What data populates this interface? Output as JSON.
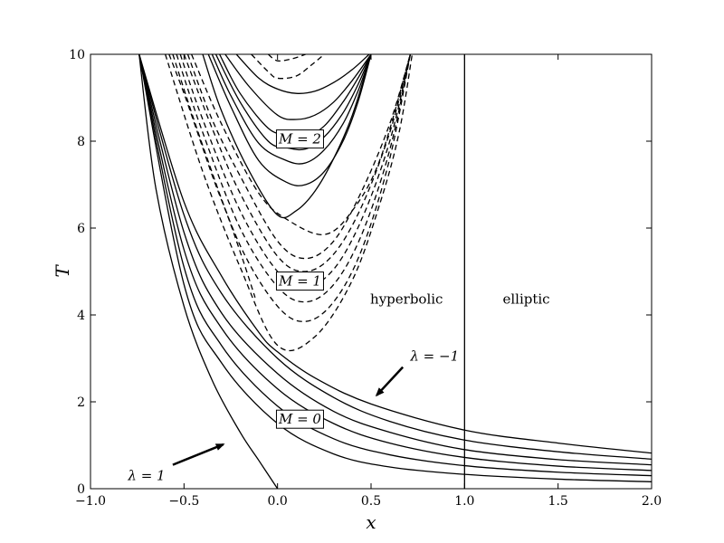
{
  "chart_data": {
    "type": "line",
    "title": "",
    "xlabel": "x",
    "ylabel": "T",
    "xlim": [
      -1.0,
      2.0
    ],
    "ylim": [
      0,
      10
    ],
    "x_ticks": [
      -1.0,
      -0.5,
      0.0,
      0.5,
      1.0,
      1.5,
      2.0
    ],
    "x_tick_labels": [
      "−1.0",
      "−0.5",
      "0.0",
      "0.5",
      "1.0",
      "1.5",
      "2.0"
    ],
    "y_ticks": [
      0,
      2,
      4,
      6,
      8,
      10
    ],
    "y_tick_labels": [
      "0",
      "2",
      "4",
      "6",
      "8",
      "10"
    ],
    "grid": false,
    "vertical_line_x": 1.0,
    "region_labels": [
      {
        "text": "hyperbolic",
        "x": 0.69,
        "y": 4.05
      },
      {
        "text": "elliptic",
        "x": 1.33,
        "y": 4.05
      }
    ],
    "box_labels": [
      {
        "text": "M = 0",
        "x": 0.12,
        "y": 1.6
      },
      {
        "text": "M = 1",
        "x": 0.12,
        "y": 4.78
      },
      {
        "text": "M = 2",
        "x": 0.12,
        "y": 8.05
      }
    ],
    "annotations": [
      {
        "text": "λ = 1",
        "text_x": -0.7,
        "text_y": 0.3,
        "arrow_from": [
          -0.56,
          0.55
        ],
        "arrow_to": [
          -0.29,
          1.02
        ]
      },
      {
        "text": "λ = −1",
        "text_x": 0.84,
        "text_y": 3.05,
        "arrow_from": [
          0.67,
          2.8
        ],
        "arrow_to": [
          0.53,
          2.15
        ]
      }
    ],
    "series": [
      {
        "group": "M=0",
        "style": "solid",
        "x": [
          -0.74,
          -0.65,
          -0.5,
          -0.35,
          -0.2,
          -0.1,
          0.0
        ],
        "y": [
          10,
          6.9,
          4.2,
          2.5,
          1.3,
          0.65,
          0.0
        ]
      },
      {
        "group": "M=0",
        "style": "solid",
        "x": [
          -0.74,
          -0.5,
          -0.3,
          0.0,
          0.3,
          0.6,
          1.0,
          1.5,
          2.0
        ],
        "y": [
          10,
          4.7,
          2.9,
          1.5,
          0.8,
          0.5,
          0.33,
          0.22,
          0.16
        ]
      },
      {
        "group": "M=0",
        "style": "solid",
        "x": [
          -0.74,
          -0.5,
          -0.3,
          0.0,
          0.3,
          0.6,
          1.0,
          1.5,
          2.0
        ],
        "y": [
          10,
          5.1,
          3.3,
          1.9,
          1.15,
          0.78,
          0.53,
          0.38,
          0.3
        ]
      },
      {
        "group": "M=0",
        "style": "solid",
        "x": [
          -0.74,
          -0.5,
          -0.3,
          0.0,
          0.3,
          0.6,
          1.0,
          1.5,
          2.0
        ],
        "y": [
          10,
          5.5,
          3.7,
          2.3,
          1.5,
          1.05,
          0.72,
          0.52,
          0.42
        ]
      },
      {
        "group": "M=0",
        "style": "solid",
        "x": [
          -0.74,
          -0.5,
          -0.3,
          0.0,
          0.3,
          0.6,
          1.0,
          1.5,
          2.0
        ],
        "y": [
          10,
          5.9,
          4.05,
          2.65,
          1.78,
          1.3,
          0.9,
          0.67,
          0.55
        ]
      },
      {
        "group": "M=0",
        "style": "solid",
        "x": [
          -0.74,
          -0.5,
          -0.3,
          0.0,
          0.3,
          0.6,
          1.0,
          1.5,
          2.0
        ],
        "y": [
          10,
          6.3,
          4.5,
          3.0,
          2.1,
          1.55,
          1.12,
          0.85,
          0.68
        ]
      },
      {
        "group": "M=0",
        "style": "solid",
        "x": [
          -0.74,
          -0.5,
          -0.3,
          -0.1,
          0.0,
          0.2,
          0.5,
          1.0,
          1.5,
          2.0
        ],
        "y": [
          10,
          6.6,
          4.9,
          3.6,
          3.15,
          2.55,
          1.95,
          1.35,
          1.05,
          0.82
        ]
      },
      {
        "group": "M=1",
        "style": "dashed",
        "x": [
          -0.6,
          -0.4,
          -0.2,
          0.0,
          0.2,
          0.4,
          0.55,
          0.65,
          0.72
        ],
        "y": [
          10,
          7.3,
          5.1,
          3.3,
          3.5,
          4.8,
          6.6,
          8.2,
          10
        ]
      },
      {
        "group": "M=1",
        "style": "dashed",
        "x": [
          -0.56,
          -0.4,
          -0.2,
          0.0,
          0.15,
          0.3,
          0.45,
          0.6,
          0.71
        ],
        "y": [
          10,
          7.9,
          5.6,
          4.2,
          3.85,
          4.3,
          5.5,
          7.6,
          10
        ]
      },
      {
        "group": "M=1",
        "style": "dashed",
        "x": [
          -0.54,
          -0.4,
          -0.2,
          0.0,
          0.15,
          0.3,
          0.45,
          0.6,
          0.71
        ],
        "y": [
          10,
          8.2,
          6.0,
          4.65,
          4.3,
          4.7,
          5.85,
          7.8,
          10
        ]
      },
      {
        "group": "M=1",
        "style": "dashed",
        "x": [
          -0.52,
          -0.4,
          -0.2,
          0.0,
          0.15,
          0.3,
          0.45,
          0.6,
          0.71
        ],
        "y": [
          10,
          8.5,
          6.4,
          5.0,
          4.65,
          5.05,
          6.2,
          8.0,
          10
        ]
      },
      {
        "group": "M=1",
        "style": "dashed",
        "x": [
          -0.5,
          -0.35,
          -0.2,
          0.0,
          0.15,
          0.3,
          0.45,
          0.6,
          0.71
        ],
        "y": [
          10,
          8.3,
          6.8,
          5.35,
          5.0,
          5.4,
          6.5,
          8.2,
          10
        ]
      },
      {
        "group": "M=1",
        "style": "dashed",
        "x": [
          -0.48,
          -0.35,
          -0.2,
          0.0,
          0.15,
          0.3,
          0.45,
          0.6,
          0.71
        ],
        "y": [
          10,
          8.5,
          7.2,
          5.7,
          5.3,
          5.7,
          6.85,
          8.4,
          10
        ]
      },
      {
        "group": "M=1",
        "style": "dashed",
        "x": [
          -0.46,
          -0.3,
          -0.1,
          0.05,
          0.25,
          0.4,
          0.55,
          0.71
        ],
        "y": [
          10,
          8.4,
          6.8,
          6.2,
          5.85,
          6.4,
          7.6,
          10
        ]
      },
      {
        "group": "M=2",
        "style": "solid",
        "x": [
          -0.4,
          -0.3,
          -0.15,
          0.0,
          0.1,
          0.2,
          0.3,
          0.4,
          0.5
        ],
        "y": [
          10,
          8.7,
          7.3,
          6.3,
          6.4,
          6.85,
          7.6,
          8.6,
          10
        ]
      },
      {
        "group": "M=2",
        "style": "solid",
        "x": [
          -0.37,
          -0.25,
          -0.1,
          0.05,
          0.15,
          0.25,
          0.35,
          0.43,
          0.5
        ],
        "y": [
          10,
          8.8,
          7.55,
          7.05,
          7.0,
          7.3,
          8.0,
          8.9,
          10
        ]
      },
      {
        "group": "M=2",
        "style": "solid",
        "x": [
          -0.35,
          -0.25,
          -0.1,
          0.05,
          0.15,
          0.25,
          0.35,
          0.43,
          0.5
        ],
        "y": [
          10,
          9.05,
          7.95,
          7.55,
          7.5,
          7.8,
          8.4,
          9.15,
          10
        ]
      },
      {
        "group": "M=2",
        "style": "solid",
        "x": [
          -0.33,
          -0.2,
          -0.05,
          0.05,
          0.15,
          0.25,
          0.35,
          0.43,
          0.5
        ],
        "y": [
          10,
          8.9,
          8.0,
          7.85,
          7.82,
          8.1,
          8.65,
          9.3,
          10
        ]
      },
      {
        "group": "M=2",
        "style": "solid",
        "x": [
          -0.31,
          -0.2,
          -0.05,
          0.05,
          0.15,
          0.25,
          0.35,
          0.43,
          0.5
        ],
        "y": [
          10,
          9.1,
          8.3,
          8.15,
          8.1,
          8.35,
          8.9,
          9.45,
          10
        ]
      },
      {
        "group": "M=2",
        "style": "solid",
        "x": [
          -0.28,
          -0.15,
          0.0,
          0.1,
          0.2,
          0.3,
          0.4,
          0.5
        ],
        "y": [
          10,
          9.25,
          8.6,
          8.5,
          8.6,
          8.9,
          9.4,
          10
        ]
      },
      {
        "group": "M=2",
        "style": "solid",
        "x": [
          -0.22,
          -0.1,
          0.0,
          0.1,
          0.2,
          0.3,
          0.4,
          0.49
        ],
        "y": [
          10,
          9.45,
          9.2,
          9.1,
          9.15,
          9.35,
          9.65,
          10
        ]
      },
      {
        "group": "M=2",
        "style": "dashed",
        "x": [
          -0.14,
          -0.05,
          0.0,
          0.1,
          0.18,
          0.25
        ],
        "y": [
          10,
          9.6,
          9.45,
          9.5,
          9.75,
          10
        ]
      },
      {
        "group": "M=2",
        "style": "dashed",
        "x": [
          -0.05,
          0.0,
          0.08,
          0.15
        ],
        "y": [
          10,
          9.85,
          9.9,
          10
        ]
      },
      {
        "group": "M=2",
        "style": "dashed",
        "x": [
          -0.58,
          -0.5,
          -0.42,
          -0.34,
          -0.26,
          -0.18,
          -0.12
        ],
        "y": [
          10,
          9.1,
          8.1,
          7.1,
          6.2,
          5.2,
          4.4
        ]
      }
    ]
  }
}
